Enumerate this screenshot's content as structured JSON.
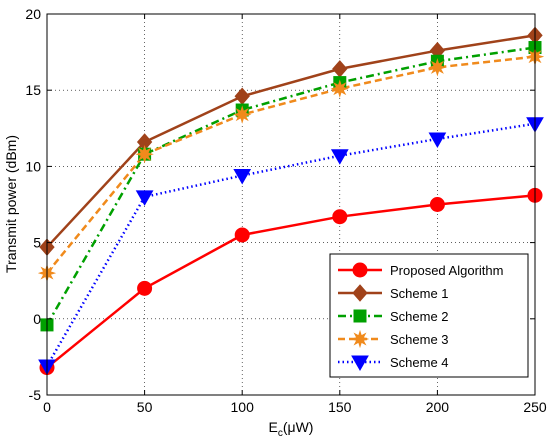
{
  "chart_data": {
    "type": "line",
    "title": "",
    "xlabel": {
      "main": "E",
      "sub": "c",
      "unit": "(μW)"
    },
    "ylabel": "Transmit power (dBm)",
    "xlim": [
      0,
      250
    ],
    "ylim": [
      -5,
      20
    ],
    "xticks": [
      0,
      50,
      100,
      150,
      200,
      250
    ],
    "yticks": [
      -5,
      0,
      5,
      10,
      15,
      20
    ],
    "grid": true,
    "legend_position": "lower-right",
    "x": [
      0,
      50,
      100,
      150,
      200,
      250
    ],
    "series": [
      {
        "name": "Proposed Algorithm",
        "values": [
          -3.2,
          2.0,
          5.5,
          6.7,
          7.5,
          8.1
        ],
        "color": "#ff0000",
        "marker": "circle",
        "line": "solid"
      },
      {
        "name": "Scheme 1",
        "values": [
          4.7,
          11.6,
          14.6,
          16.4,
          17.6,
          18.6
        ],
        "color": "#a0421a",
        "marker": "diamond",
        "line": "solid"
      },
      {
        "name": "Scheme 2",
        "values": [
          -0.4,
          10.8,
          13.7,
          15.5,
          16.9,
          17.8
        ],
        "color": "#00a000",
        "marker": "square",
        "line": "dashdot"
      },
      {
        "name": "Scheme 3",
        "values": [
          3.0,
          10.8,
          13.4,
          15.1,
          16.5,
          17.2
        ],
        "color": "#f08a1c",
        "marker": "star",
        "line": "dashed"
      },
      {
        "name": "Scheme 4",
        "values": [
          -3.1,
          8.0,
          9.4,
          10.7,
          11.8,
          12.8
        ],
        "color": "#0000ff",
        "marker": "triangle-down",
        "line": "dotted"
      }
    ]
  }
}
